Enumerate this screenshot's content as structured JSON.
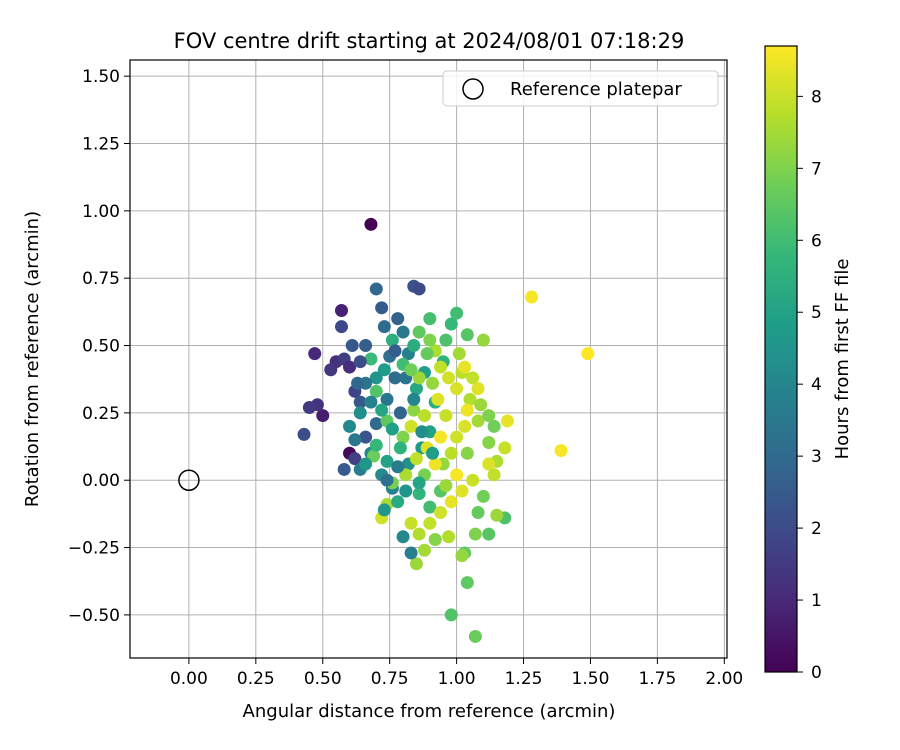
{
  "chart_data": {
    "type": "scatter",
    "title": "FOV centre drift starting at 2024/08/01 07:18:29",
    "xlabel": "Angular distance from reference (arcmin)",
    "ylabel": "Rotation from reference (arcmin)",
    "xlim": [
      -0.22,
      2.01
    ],
    "ylim": [
      -0.66,
      1.56
    ],
    "x_ticks": [
      "0.00",
      "0.25",
      "0.50",
      "0.75",
      "1.00",
      "1.25",
      "1.50",
      "1.75",
      "2.00"
    ],
    "y_ticks": [
      "−0.50",
      "−0.25",
      "0.00",
      "0.25",
      "0.50",
      "0.75",
      "1.00",
      "1.25",
      "1.50"
    ],
    "grid": true,
    "legend": {
      "placement": "top-right",
      "label": "Reference platepar"
    },
    "reference_point": {
      "x": 0.0,
      "y": 0.0
    },
    "colorbar": {
      "label": "Hours from first FF file",
      "min": 0,
      "max": 8.7,
      "ticks": [
        "0",
        "1",
        "2",
        "3",
        "4",
        "5",
        "6",
        "7",
        "8"
      ],
      "colormap": [
        "#440154",
        "#482878",
        "#3e4989",
        "#31688e",
        "#26828e",
        "#1f9e89",
        "#35b779",
        "#6ece58",
        "#b5de2b",
        "#fde725"
      ]
    },
    "points": [
      {
        "x": 0.68,
        "y": 0.95,
        "c": 0.0
      },
      {
        "x": 0.57,
        "y": 0.63,
        "c": 0.8
      },
      {
        "x": 0.6,
        "y": 0.1,
        "c": 0.2
      },
      {
        "x": 0.5,
        "y": 0.24,
        "c": 0.7
      },
      {
        "x": 0.48,
        "y": 0.28,
        "c": 1.3
      },
      {
        "x": 0.45,
        "y": 0.27,
        "c": 1.5
      },
      {
        "x": 0.43,
        "y": 0.17,
        "c": 2.1
      },
      {
        "x": 0.47,
        "y": 0.47,
        "c": 1.0
      },
      {
        "x": 0.55,
        "y": 0.44,
        "c": 1.2
      },
      {
        "x": 0.53,
        "y": 0.41,
        "c": 1.4
      },
      {
        "x": 0.57,
        "y": 0.57,
        "c": 1.9
      },
      {
        "x": 0.58,
        "y": 0.45,
        "c": 1.6
      },
      {
        "x": 0.6,
        "y": 0.42,
        "c": 1.1
      },
      {
        "x": 0.62,
        "y": 0.33,
        "c": 1.8
      },
      {
        "x": 0.64,
        "y": 0.29,
        "c": 2.4
      },
      {
        "x": 0.66,
        "y": 0.5,
        "c": 2.6
      },
      {
        "x": 0.7,
        "y": 0.71,
        "c": 2.9
      },
      {
        "x": 0.72,
        "y": 0.64,
        "c": 2.5
      },
      {
        "x": 0.84,
        "y": 0.72,
        "c": 2.2
      },
      {
        "x": 0.86,
        "y": 0.71,
        "c": 2.0
      },
      {
        "x": 0.78,
        "y": 0.6,
        "c": 2.7
      },
      {
        "x": 0.75,
        "y": 0.46,
        "c": 3.2
      },
      {
        "x": 0.8,
        "y": 0.55,
        "c": 3.5
      },
      {
        "x": 0.77,
        "y": 0.38,
        "c": 3.1
      },
      {
        "x": 0.82,
        "y": 0.47,
        "c": 3.8
      },
      {
        "x": 0.74,
        "y": 0.3,
        "c": 3.4
      },
      {
        "x": 0.79,
        "y": 0.25,
        "c": 2.8
      },
      {
        "x": 0.7,
        "y": 0.21,
        "c": 3.0
      },
      {
        "x": 0.66,
        "y": 0.16,
        "c": 2.3
      },
      {
        "x": 0.62,
        "y": 0.08,
        "c": 1.7
      },
      {
        "x": 0.58,
        "y": 0.04,
        "c": 2.5
      },
      {
        "x": 0.64,
        "y": 0.04,
        "c": 3.6
      },
      {
        "x": 0.68,
        "y": 0.1,
        "c": 4.0
      },
      {
        "x": 0.72,
        "y": 0.02,
        "c": 4.2
      },
      {
        "x": 0.76,
        "y": -0.03,
        "c": 3.9
      },
      {
        "x": 0.82,
        "y": 0.06,
        "c": 4.4
      },
      {
        "x": 0.87,
        "y": 0.12,
        "c": 4.7
      },
      {
        "x": 0.9,
        "y": 0.18,
        "c": 5.0
      },
      {
        "x": 0.85,
        "y": 0.34,
        "c": 5.2
      },
      {
        "x": 0.88,
        "y": 0.4,
        "c": 4.9
      },
      {
        "x": 0.92,
        "y": 0.29,
        "c": 5.4
      },
      {
        "x": 0.95,
        "y": 0.44,
        "c": 5.6
      },
      {
        "x": 0.98,
        "y": 0.58,
        "c": 5.8
      },
      {
        "x": 1.0,
        "y": 0.62,
        "c": 6.0
      },
      {
        "x": 0.96,
        "y": 0.52,
        "c": 6.2
      },
      {
        "x": 1.04,
        "y": 0.54,
        "c": 6.4
      },
      {
        "x": 0.9,
        "y": 0.6,
        "c": 6.1
      },
      {
        "x": 0.68,
        "y": 0.45,
        "c": 5.9
      },
      {
        "x": 0.7,
        "y": 0.33,
        "c": 6.3
      },
      {
        "x": 0.74,
        "y": 0.22,
        "c": 6.5
      },
      {
        "x": 0.69,
        "y": 0.09,
        "c": 6.7
      },
      {
        "x": 0.76,
        "y": -0.01,
        "c": 6.9
      },
      {
        "x": 0.8,
        "y": 0.16,
        "c": 7.0
      },
      {
        "x": 0.84,
        "y": 0.26,
        "c": 7.2
      },
      {
        "x": 0.86,
        "y": 0.38,
        "c": 7.4
      },
      {
        "x": 0.92,
        "y": 0.48,
        "c": 7.6
      },
      {
        "x": 1.02,
        "y": 0.4,
        "c": 7.8
      },
      {
        "x": 1.05,
        "y": 0.3,
        "c": 7.7
      },
      {
        "x": 1.08,
        "y": 0.22,
        "c": 7.5
      },
      {
        "x": 1.1,
        "y": 0.52,
        "c": 7.3
      },
      {
        "x": 1.12,
        "y": 0.14,
        "c": 7.1
      },
      {
        "x": 1.15,
        "y": 0.07,
        "c": 7.6
      },
      {
        "x": 1.14,
        "y": 0.02,
        "c": 7.9
      },
      {
        "x": 1.1,
        "y": -0.06,
        "c": 6.8
      },
      {
        "x": 1.08,
        "y": -0.12,
        "c": 6.6
      },
      {
        "x": 1.12,
        "y": -0.2,
        "c": 6.4
      },
      {
        "x": 1.18,
        "y": -0.14,
        "c": 6.2
      },
      {
        "x": 1.15,
        "y": -0.13,
        "c": 7.4
      },
      {
        "x": 1.07,
        "y": -0.2,
        "c": 7.0
      },
      {
        "x": 1.03,
        "y": -0.27,
        "c": 6.6
      },
      {
        "x": 1.04,
        "y": -0.38,
        "c": 6.5
      },
      {
        "x": 0.98,
        "y": -0.5,
        "c": 6.3
      },
      {
        "x": 1.07,
        "y": -0.58,
        "c": 6.7
      },
      {
        "x": 1.02,
        "y": -0.28,
        "c": 7.3
      },
      {
        "x": 0.97,
        "y": -0.21,
        "c": 7.7
      },
      {
        "x": 0.92,
        "y": -0.22,
        "c": 7.1
      },
      {
        "x": 0.88,
        "y": -0.26,
        "c": 7.5
      },
      {
        "x": 0.85,
        "y": -0.31,
        "c": 7.4
      },
      {
        "x": 0.83,
        "y": -0.27,
        "c": 3.7
      },
      {
        "x": 0.8,
        "y": -0.21,
        "c": 4.1
      },
      {
        "x": 0.83,
        "y": -0.16,
        "c": 8.0
      },
      {
        "x": 0.74,
        "y": -0.09,
        "c": 7.6
      },
      {
        "x": 0.72,
        "y": -0.14,
        "c": 8.1
      },
      {
        "x": 0.73,
        "y": -0.11,
        "c": 4.6
      },
      {
        "x": 0.78,
        "y": -0.08,
        "c": 5.3
      },
      {
        "x": 0.86,
        "y": -0.05,
        "c": 5.7
      },
      {
        "x": 0.9,
        "y": -0.1,
        "c": 6.0
      },
      {
        "x": 0.94,
        "y": -0.04,
        "c": 6.4
      },
      {
        "x": 0.88,
        "y": 0.02,
        "c": 6.9
      },
      {
        "x": 0.95,
        "y": 0.06,
        "c": 7.3
      },
      {
        "x": 0.98,
        "y": 0.1,
        "c": 7.8
      },
      {
        "x": 1.0,
        "y": 0.16,
        "c": 8.1
      },
      {
        "x": 1.03,
        "y": 0.2,
        "c": 8.2
      },
      {
        "x": 0.96,
        "y": 0.24,
        "c": 8.0
      },
      {
        "x": 0.93,
        "y": 0.3,
        "c": 8.3
      },
      {
        "x": 1.0,
        "y": 0.34,
        "c": 8.2
      },
      {
        "x": 1.03,
        "y": 0.42,
        "c": 8.4
      },
      {
        "x": 0.97,
        "y": 0.38,
        "c": 8.1
      },
      {
        "x": 1.06,
        "y": 0.38,
        "c": 7.9
      },
      {
        "x": 1.08,
        "y": 0.34,
        "c": 8.3
      },
      {
        "x": 1.04,
        "y": 0.26,
        "c": 8.5
      },
      {
        "x": 1.09,
        "y": 0.28,
        "c": 7.4
      },
      {
        "x": 1.12,
        "y": 0.24,
        "c": 7.0
      },
      {
        "x": 1.14,
        "y": 0.2,
        "c": 6.8
      },
      {
        "x": 1.18,
        "y": 0.12,
        "c": 8.0
      },
      {
        "x": 1.12,
        "y": 0.06,
        "c": 8.2
      },
      {
        "x": 1.06,
        "y": 0.0,
        "c": 8.0
      },
      {
        "x": 1.02,
        "y": -0.04,
        "c": 8.3
      },
      {
        "x": 0.98,
        "y": -0.08,
        "c": 8.4
      },
      {
        "x": 0.94,
        "y": -0.12,
        "c": 8.1
      },
      {
        "x": 0.9,
        "y": -0.16,
        "c": 7.9
      },
      {
        "x": 0.86,
        "y": -0.2,
        "c": 7.7
      },
      {
        "x": 0.92,
        "y": 0.06,
        "c": 8.5
      },
      {
        "x": 0.89,
        "y": 0.12,
        "c": 8.3
      },
      {
        "x": 0.85,
        "y": 0.08,
        "c": 7.9
      },
      {
        "x": 0.81,
        "y": 0.02,
        "c": 7.6
      },
      {
        "x": 0.83,
        "y": 0.2,
        "c": 8.1
      },
      {
        "x": 0.88,
        "y": 0.24,
        "c": 7.8
      },
      {
        "x": 0.91,
        "y": 0.36,
        "c": 7.3
      },
      {
        "x": 0.94,
        "y": 0.16,
        "c": 8.6
      },
      {
        "x": 1.0,
        "y": 0.02,
        "c": 8.6
      },
      {
        "x": 0.96,
        "y": -0.02,
        "c": 7.4
      },
      {
        "x": 1.04,
        "y": 0.1,
        "c": 7.1
      },
      {
        "x": 1.01,
        "y": 0.47,
        "c": 7.5
      },
      {
        "x": 0.94,
        "y": 0.42,
        "c": 7.9
      },
      {
        "x": 0.89,
        "y": 0.47,
        "c": 6.6
      },
      {
        "x": 0.84,
        "y": 0.5,
        "c": 5.4
      },
      {
        "x": 0.8,
        "y": 0.43,
        "c": 6.0
      },
      {
        "x": 0.76,
        "y": 0.52,
        "c": 5.5
      },
      {
        "x": 0.73,
        "y": 0.41,
        "c": 4.8
      },
      {
        "x": 0.7,
        "y": 0.38,
        "c": 4.5
      },
      {
        "x": 0.66,
        "y": 0.36,
        "c": 3.3
      },
      {
        "x": 0.64,
        "y": 0.25,
        "c": 4.3
      },
      {
        "x": 0.68,
        "y": 0.29,
        "c": 3.9
      },
      {
        "x": 0.72,
        "y": 0.26,
        "c": 5.1
      },
      {
        "x": 0.76,
        "y": 0.19,
        "c": 4.9
      },
      {
        "x": 0.79,
        "y": 0.12,
        "c": 5.6
      },
      {
        "x": 0.74,
        "y": 0.07,
        "c": 5.0
      },
      {
        "x": 0.7,
        "y": 0.13,
        "c": 5.8
      },
      {
        "x": 0.66,
        "y": 0.06,
        "c": 4.6
      },
      {
        "x": 0.62,
        "y": 0.15,
        "c": 3.5
      },
      {
        "x": 0.6,
        "y": 0.2,
        "c": 4.1
      },
      {
        "x": 0.63,
        "y": 0.36,
        "c": 2.9
      },
      {
        "x": 0.61,
        "y": 0.5,
        "c": 2.4
      },
      {
        "x": 0.64,
        "y": 0.44,
        "c": 2.1
      },
      {
        "x": 0.73,
        "y": 0.57,
        "c": 3.0
      },
      {
        "x": 0.77,
        "y": 0.48,
        "c": 2.6
      },
      {
        "x": 0.81,
        "y": 0.38,
        "c": 3.3
      },
      {
        "x": 0.84,
        "y": 0.3,
        "c": 4.0
      },
      {
        "x": 0.87,
        "y": 0.18,
        "c": 4.3
      },
      {
        "x": 0.91,
        "y": 0.1,
        "c": 4.8
      },
      {
        "x": 0.86,
        "y": -0.01,
        "c": 5.1
      },
      {
        "x": 0.81,
        "y": -0.04,
        "c": 4.5
      },
      {
        "x": 0.78,
        "y": 0.05,
        "c": 3.6
      },
      {
        "x": 0.74,
        "y": 0.0,
        "c": 3.2
      },
      {
        "x": 0.83,
        "y": 0.41,
        "c": 6.8
      },
      {
        "x": 0.86,
        "y": 0.55,
        "c": 6.5
      },
      {
        "x": 0.9,
        "y": 0.52,
        "c": 7.0
      },
      {
        "x": 1.28,
        "y": 0.68,
        "c": 8.6
      },
      {
        "x": 1.49,
        "y": 0.47,
        "c": 8.7
      },
      {
        "x": 1.39,
        "y": 0.11,
        "c": 8.6
      },
      {
        "x": 1.19,
        "y": 0.22,
        "c": 8.4
      }
    ]
  }
}
